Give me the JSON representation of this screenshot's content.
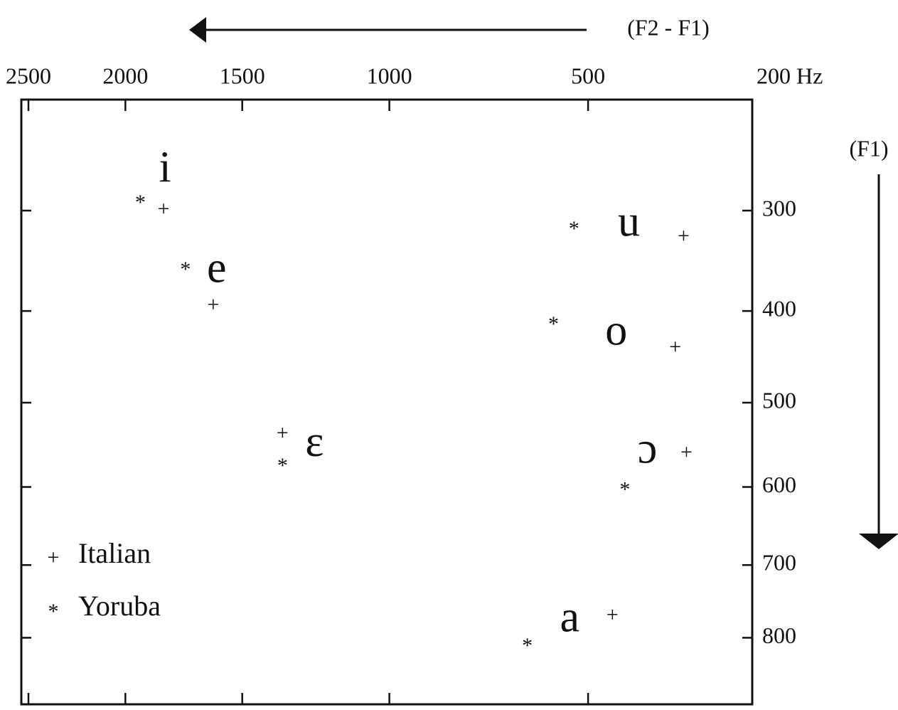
{
  "chart_data": {
    "type": "scatter",
    "x_label": "(F2 - F1)",
    "y_label": "(F1)",
    "xscale": "mel",
    "yscale": "mel",
    "yreversed": true,
    "xlim": [
      2500,
      200
    ],
    "xticks": [
      2500,
      2000,
      1500,
      1000,
      500,
      {
        "value": 200,
        "label": "200 Hz"
      }
    ],
    "ylim": [
      200,
      900
    ],
    "yticks": [
      300,
      400,
      500,
      600,
      700,
      800
    ],
    "vowels": [
      "i",
      "e",
      "ɛ",
      "u",
      "o",
      "ɔ",
      "a"
    ],
    "legend": "bottom-left",
    "series": [
      {
        "name": "Italian",
        "marker": "+",
        "color": "#111111",
        "x": [
          1825,
          1615,
          1350,
          315,
          330,
          310,
          450
        ],
        "values": [
          300,
          395,
          537,
          326,
          440,
          560,
          770
        ]
      },
      {
        "name": "Yoruba",
        "marker": "*",
        "color": "#111111",
        "x": [
          1930,
          1730,
          1350,
          530,
          575,
          425,
          635
        ],
        "values": [
          290,
          355,
          571,
          315,
          411,
          600,
          808
        ]
      }
    ]
  }
}
